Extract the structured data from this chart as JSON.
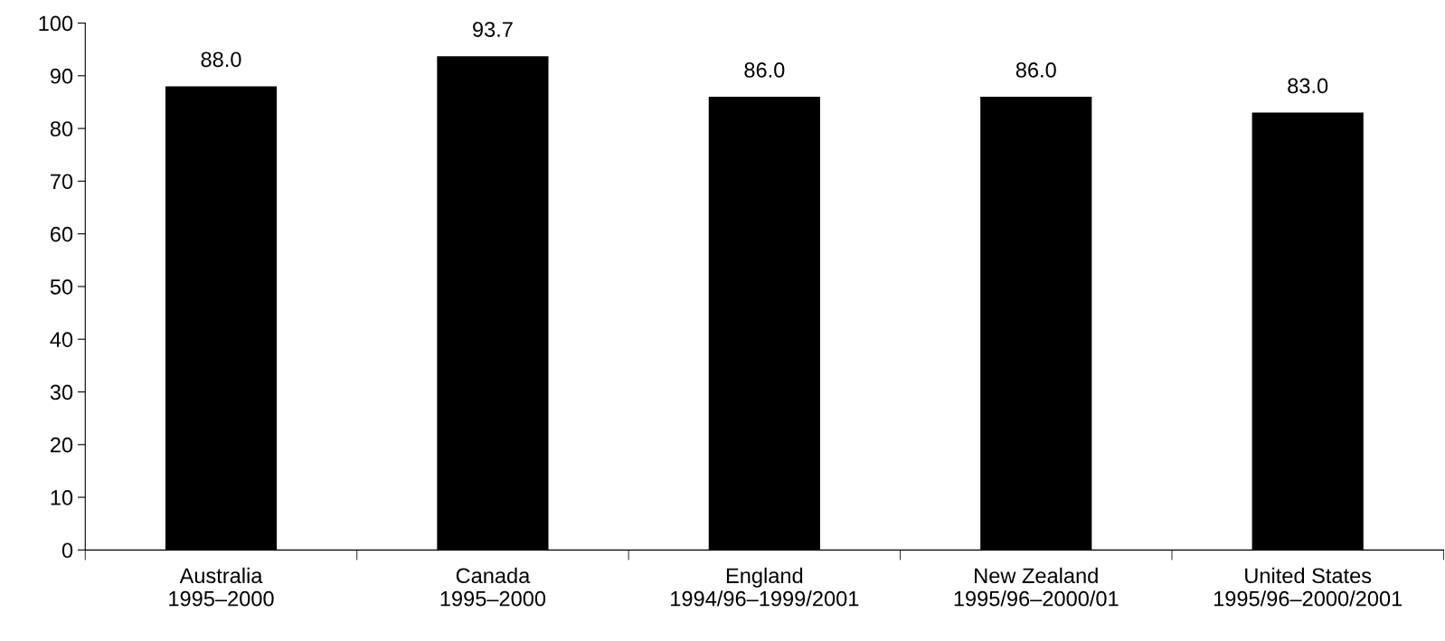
{
  "chart_data": {
    "type": "bar",
    "categories": [
      "Australia\n1995–2000",
      "Canada\n1995–2000",
      "England\n1994/96–1999/2001",
      "New Zealand\n1995/96–2000/01",
      "United States\n1995/96–2000/2001"
    ],
    "values": [
      88.0,
      93.7,
      86.0,
      86.0,
      83.0
    ],
    "value_labels": [
      "88.0",
      "93.7",
      "86.0",
      "86.0",
      "83.0"
    ],
    "color": "#000000",
    "ylim": [
      0,
      100
    ],
    "yticks": [
      0,
      10,
      20,
      30,
      40,
      50,
      60,
      70,
      80,
      90,
      100
    ],
    "grid": false
  }
}
